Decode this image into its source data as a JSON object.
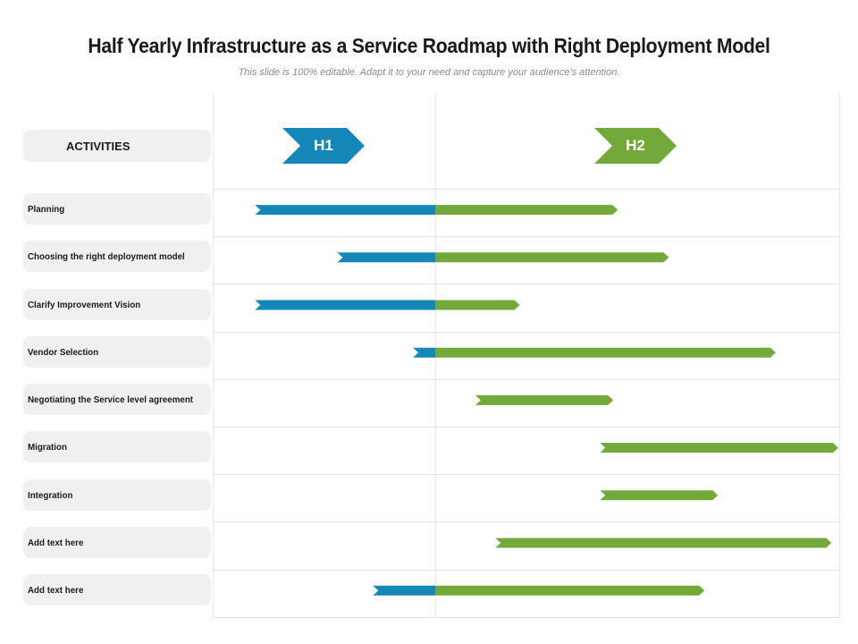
{
  "title": "Half Yearly Infrastructure as a Service Roadmap with Right Deployment Model",
  "subtitle": "This slide is 100% editable. Adapt it to your need and capture your audience’s attention.",
  "header_label": "ACTIVITIES",
  "periods": [
    "H1",
    "H2"
  ],
  "colors": {
    "h1": "#1487b8",
    "h2": "#73a93a",
    "label_bg": "#f0f0f0",
    "grid": "#e2e2e2"
  },
  "chart_data": {
    "type": "gantt",
    "timeline": [
      "H1",
      "H2"
    ],
    "scale_note": "position expressed in half-years from start of H1 (0 = start of H1, 1 = end of H1 / start of H2, 2 = end of H2)",
    "tasks": [
      {
        "label": "Planning",
        "start": 0.19,
        "end": 1.82
      },
      {
        "label": "Choosing the right deployment model",
        "start": 0.56,
        "end": 2.05
      },
      {
        "label": "Clarify Improvement Vision",
        "start": 0.19,
        "end": 1.38
      },
      {
        "label": "Vendor Selection",
        "start": 0.9,
        "end": 2.53
      },
      {
        "label": "Negotiating the Service level agreement",
        "start": 1.18,
        "end": 1.8
      },
      {
        "label": "Migration",
        "start": 1.74,
        "end": 2.83
      },
      {
        "label": "Integration",
        "start": 1.74,
        "end": 2.27
      },
      {
        "label": "Add text here",
        "start": 1.27,
        "end": 2.78
      },
      {
        "label": "Add text here",
        "start": 0.72,
        "end": 2.21
      }
    ]
  }
}
